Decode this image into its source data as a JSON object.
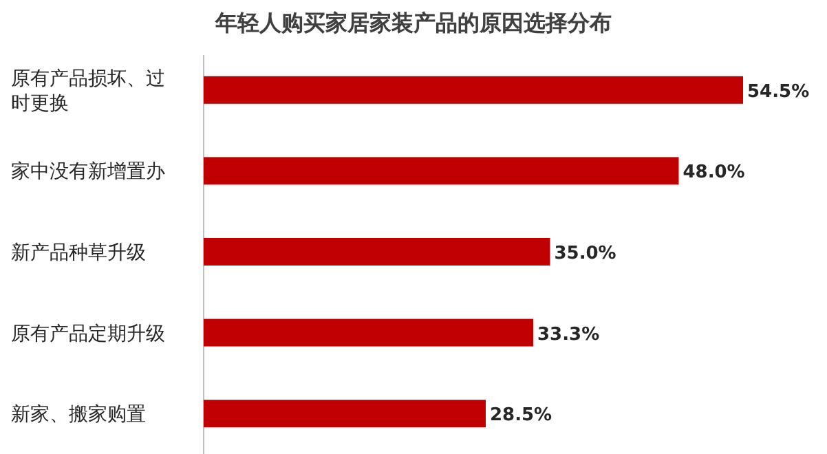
{
  "chart_data": {
    "type": "bar",
    "orientation": "horizontal",
    "title": "年轻人购买家居家装产品的原因选择分布",
    "categories": [
      "原有产品损坏、过时更换",
      "家中没有新增置办",
      "新产品种草升级",
      "原有产品定期升级",
      "新家、搬家购置"
    ],
    "values": [
      54.5,
      48.0,
      35.0,
      33.3,
      28.5
    ],
    "value_labels": [
      "54.5%",
      "48.0%",
      "35.0%",
      "33.3%",
      "28.5%"
    ],
    "tick_labels": "y",
    "color": "#c00000"
  }
}
